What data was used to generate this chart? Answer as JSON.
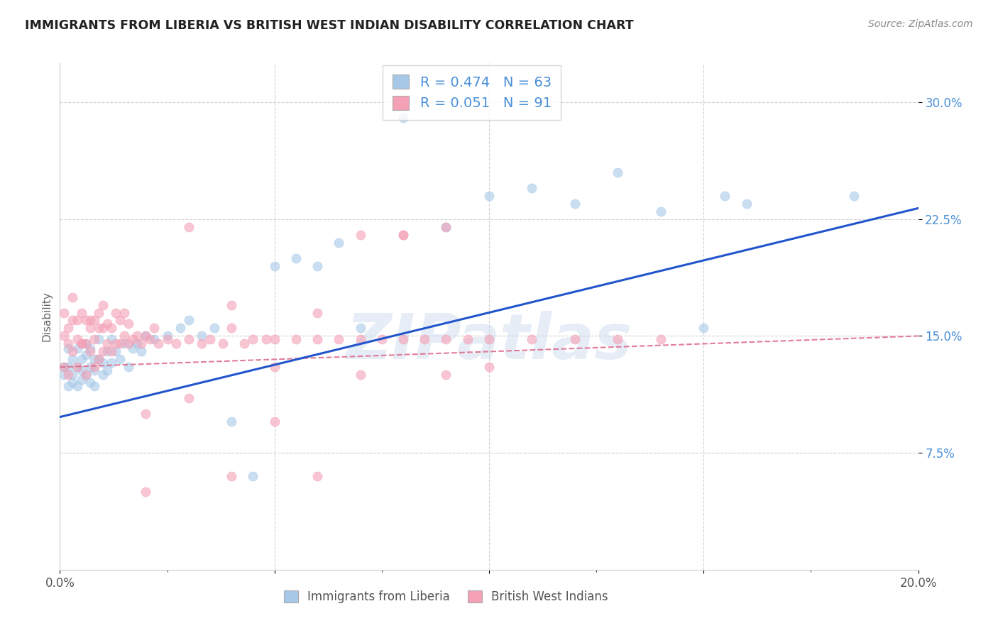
{
  "title": "IMMIGRANTS FROM LIBERIA VS BRITISH WEST INDIAN DISABILITY CORRELATION CHART",
  "source": "Source: ZipAtlas.com",
  "ylabel": "Disability",
  "xlim": [
    0.0,
    0.2
  ],
  "ylim": [
    0.0,
    0.325
  ],
  "ytick_positions": [
    0.075,
    0.15,
    0.225,
    0.3
  ],
  "ytick_labels": [
    "7.5%",
    "15.0%",
    "22.5%",
    "30.0%"
  ],
  "xtick_positions": [
    0.0,
    0.05,
    0.1,
    0.15,
    0.2
  ],
  "xtick_labels": [
    "0.0%",
    "",
    "",
    "",
    "20.0%"
  ],
  "watermark_text": "ZIPatlas",
  "series1_color": "#a8c8e8",
  "series2_color": "#f4a0b5",
  "series1_label": "Immigrants from Liberia",
  "series2_label": "British West Indians",
  "series1_R": 0.474,
  "series1_N": 63,
  "series2_R": 0.051,
  "series2_N": 91,
  "legend_text_color": "#4a90d9",
  "trendline1_color": "#2255cc",
  "trendline2_color": "#dd6688",
  "background_color": "#ffffff",
  "grid_color": "#cccccc",
  "series1_x": [
    0.001,
    0.001,
    0.002,
    0.002,
    0.002,
    0.003,
    0.003,
    0.003,
    0.004,
    0.004,
    0.004,
    0.005,
    0.005,
    0.005,
    0.006,
    0.006,
    0.006,
    0.007,
    0.007,
    0.007,
    0.008,
    0.008,
    0.008,
    0.009,
    0.009,
    0.01,
    0.01,
    0.011,
    0.011,
    0.012,
    0.012,
    0.013,
    0.014,
    0.015,
    0.016,
    0.017,
    0.018,
    0.019,
    0.02,
    0.022,
    0.025,
    0.028,
    0.03,
    0.033,
    0.036,
    0.04,
    0.045,
    0.05,
    0.055,
    0.06,
    0.065,
    0.07,
    0.08,
    0.09,
    0.1,
    0.11,
    0.12,
    0.13,
    0.14,
    0.15,
    0.155,
    0.16,
    0.185
  ],
  "series1_y": [
    0.125,
    0.13,
    0.118,
    0.13,
    0.142,
    0.12,
    0.135,
    0.125,
    0.118,
    0.13,
    0.142,
    0.128,
    0.135,
    0.122,
    0.138,
    0.125,
    0.145,
    0.13,
    0.12,
    0.142,
    0.128,
    0.135,
    0.118,
    0.135,
    0.148,
    0.133,
    0.125,
    0.14,
    0.128,
    0.148,
    0.133,
    0.14,
    0.135,
    0.145,
    0.13,
    0.142,
    0.145,
    0.14,
    0.15,
    0.148,
    0.15,
    0.155,
    0.16,
    0.15,
    0.155,
    0.095,
    0.06,
    0.195,
    0.2,
    0.195,
    0.21,
    0.155,
    0.29,
    0.22,
    0.24,
    0.245,
    0.235,
    0.255,
    0.23,
    0.155,
    0.24,
    0.235,
    0.24
  ],
  "series2_x": [
    0.001,
    0.001,
    0.001,
    0.002,
    0.002,
    0.002,
    0.003,
    0.003,
    0.003,
    0.004,
    0.004,
    0.004,
    0.005,
    0.005,
    0.005,
    0.006,
    0.006,
    0.006,
    0.007,
    0.007,
    0.007,
    0.008,
    0.008,
    0.008,
    0.009,
    0.009,
    0.009,
    0.01,
    0.01,
    0.01,
    0.011,
    0.011,
    0.012,
    0.012,
    0.013,
    0.013,
    0.014,
    0.014,
    0.015,
    0.015,
    0.016,
    0.016,
    0.017,
    0.018,
    0.019,
    0.02,
    0.021,
    0.022,
    0.023,
    0.025,
    0.027,
    0.03,
    0.033,
    0.035,
    0.038,
    0.04,
    0.043,
    0.045,
    0.048,
    0.05,
    0.055,
    0.06,
    0.065,
    0.07,
    0.075,
    0.08,
    0.085,
    0.09,
    0.095,
    0.1,
    0.11,
    0.12,
    0.13,
    0.14,
    0.02,
    0.03,
    0.04,
    0.05,
    0.06,
    0.07,
    0.08,
    0.09,
    0.1,
    0.03,
    0.05,
    0.07,
    0.09,
    0.02,
    0.04,
    0.06,
    0.08
  ],
  "series2_y": [
    0.13,
    0.15,
    0.165,
    0.125,
    0.145,
    0.155,
    0.14,
    0.16,
    0.175,
    0.13,
    0.148,
    0.16,
    0.145,
    0.165,
    0.145,
    0.125,
    0.145,
    0.16,
    0.155,
    0.14,
    0.16,
    0.13,
    0.148,
    0.16,
    0.135,
    0.155,
    0.165,
    0.14,
    0.155,
    0.17,
    0.145,
    0.158,
    0.14,
    0.155,
    0.145,
    0.165,
    0.145,
    0.16,
    0.15,
    0.165,
    0.145,
    0.158,
    0.148,
    0.15,
    0.145,
    0.15,
    0.148,
    0.155,
    0.145,
    0.148,
    0.145,
    0.148,
    0.145,
    0.148,
    0.145,
    0.155,
    0.145,
    0.148,
    0.148,
    0.148,
    0.148,
    0.148,
    0.148,
    0.148,
    0.148,
    0.148,
    0.148,
    0.148,
    0.148,
    0.148,
    0.148,
    0.148,
    0.148,
    0.148,
    0.1,
    0.11,
    0.17,
    0.095,
    0.165,
    0.215,
    0.215,
    0.22,
    0.13,
    0.22,
    0.13,
    0.125,
    0.125,
    0.05,
    0.06,
    0.06,
    0.215
  ]
}
